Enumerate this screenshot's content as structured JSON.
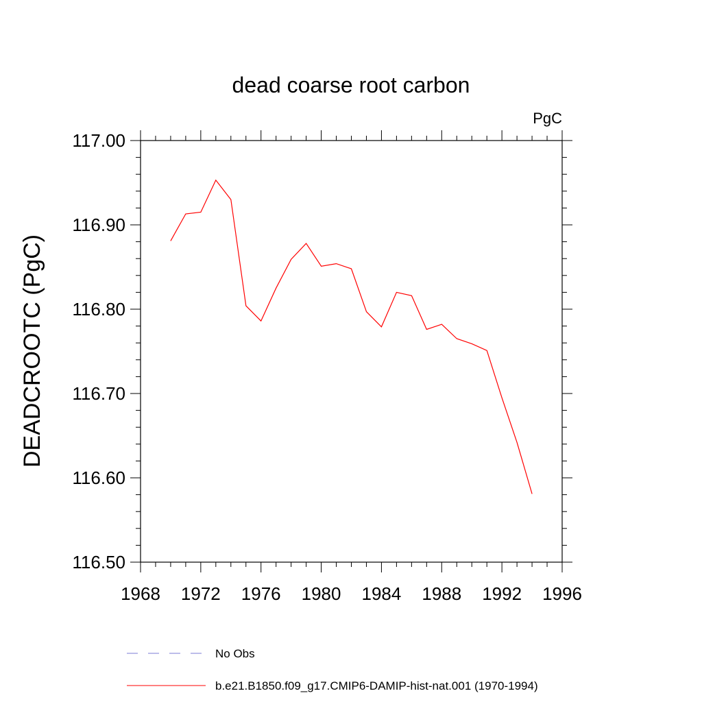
{
  "colors": {
    "model": "#ff0000",
    "obs": "#7b7bd6",
    "axis": "#000000"
  },
  "chart_data": {
    "type": "line",
    "title": "dead coarse root carbon",
    "units": "PgC",
    "ylabel": "DEADCROOTC  (PgC)",
    "xlabel": "",
    "xlim": [
      1968,
      1996
    ],
    "ylim": [
      116.5,
      117.0
    ],
    "x_ticks": [
      1968,
      1972,
      1976,
      1980,
      1984,
      1988,
      1992,
      1996
    ],
    "x_tick_labels": [
      "1968",
      "1972",
      "1976",
      "1980",
      "1984",
      "1988",
      "1992",
      "1996"
    ],
    "y_ticks": [
      116.5,
      116.6,
      116.7,
      116.8,
      116.9,
      117.0
    ],
    "y_tick_labels": [
      "116.50",
      "116.60",
      "116.70",
      "116.80",
      "116.90",
      "117.00"
    ],
    "grid": false,
    "legend": {
      "placement": "bottom-left"
    },
    "series": [
      {
        "name": "b.e21.B1850.f09_g17.CMIP6-DAMIP-hist-nat.001 (1970-1994)",
        "style": "solid",
        "x": [
          1970,
          1971,
          1972,
          1973,
          1974,
          1975,
          1976,
          1977,
          1978,
          1979,
          1980,
          1981,
          1982,
          1983,
          1984,
          1985,
          1986,
          1987,
          1988,
          1989,
          1990,
          1991,
          1992,
          1993,
          1994
        ],
        "values": [
          116.881,
          116.913,
          116.915,
          116.953,
          116.93,
          116.804,
          116.786,
          116.825,
          116.859,
          116.878,
          116.851,
          116.854,
          116.848,
          116.797,
          116.779,
          116.82,
          116.816,
          116.776,
          116.782,
          116.765,
          116.759,
          116.751,
          116.695,
          116.642,
          116.581
        ]
      },
      {
        "name": "No Obs",
        "style": "dashed",
        "x": [],
        "values": []
      }
    ]
  }
}
